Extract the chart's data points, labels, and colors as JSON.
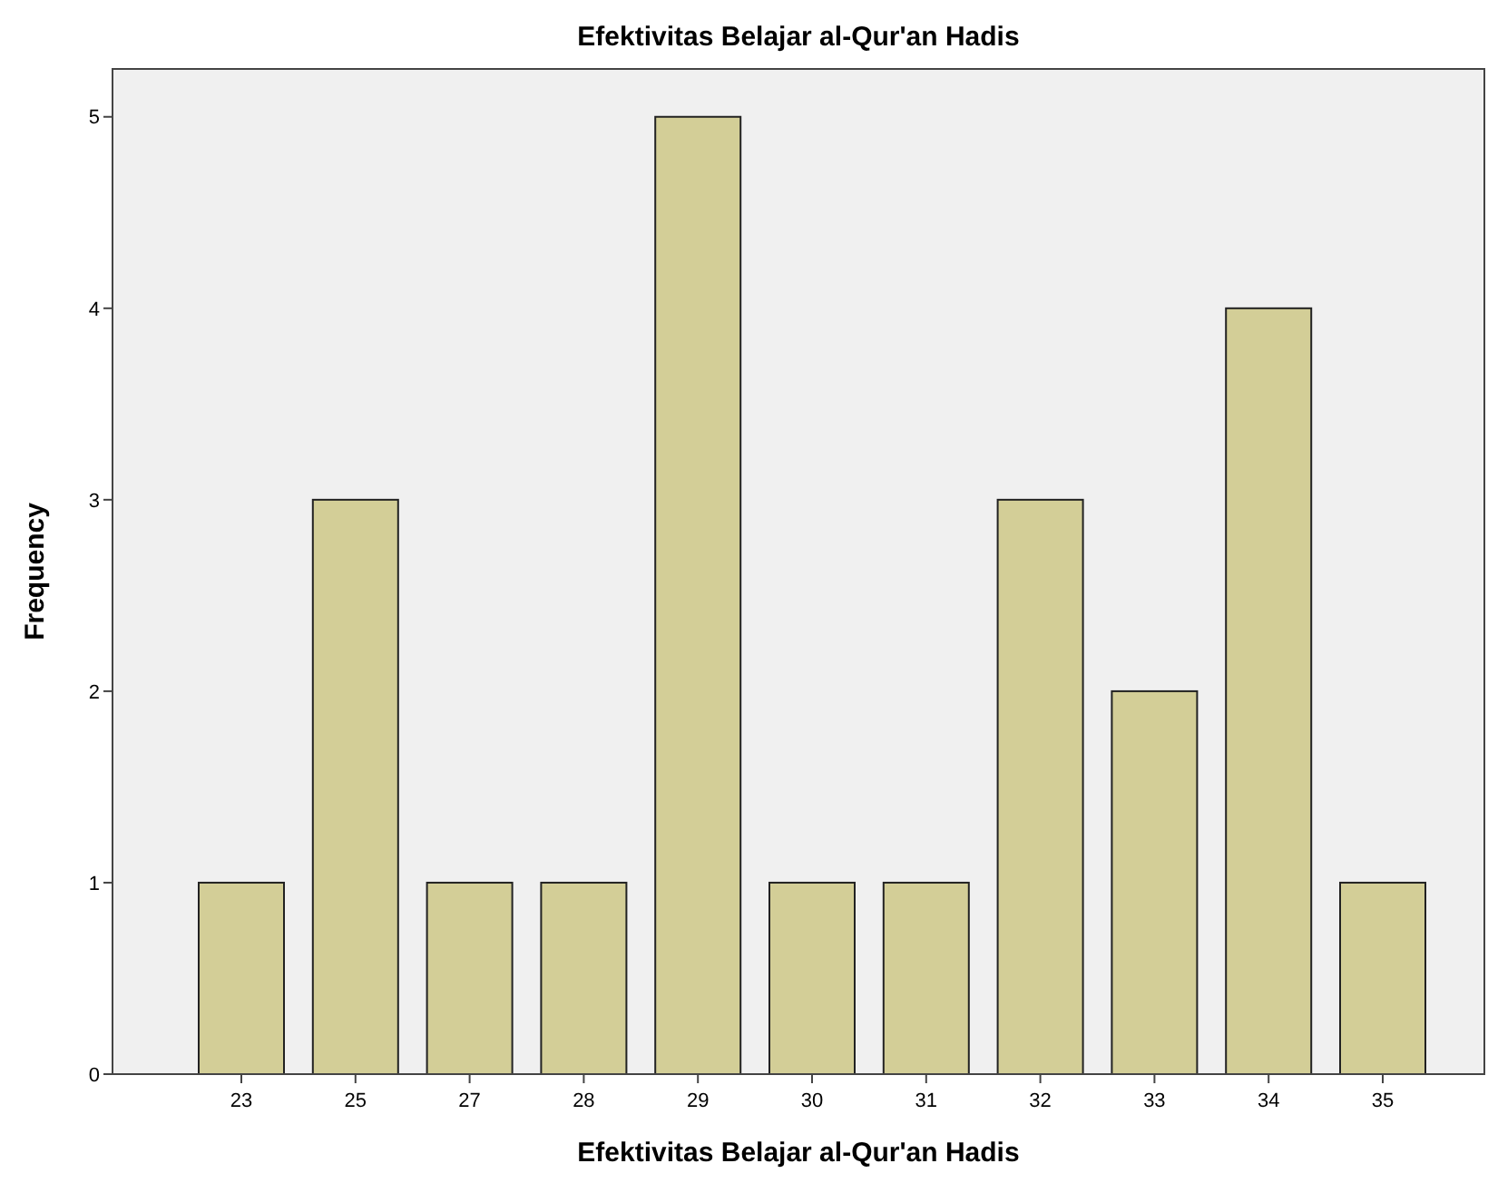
{
  "chart_data": {
    "type": "bar",
    "title": "Efektivitas Belajar al-Qur'an Hadis",
    "xlabel": "Efektivitas Belajar al-Qur'an Hadis",
    "ylabel": "Frequency",
    "categories": [
      "23",
      "25",
      "27",
      "28",
      "29",
      "30",
      "31",
      "32",
      "33",
      "34",
      "35"
    ],
    "values": [
      1,
      3,
      1,
      1,
      5,
      1,
      1,
      3,
      2,
      4,
      1
    ],
    "color": "#d3ce97",
    "ylim": [
      0,
      5.25
    ],
    "yticks": [
      0,
      1,
      2,
      3,
      4,
      5
    ],
    "grid": false
  }
}
